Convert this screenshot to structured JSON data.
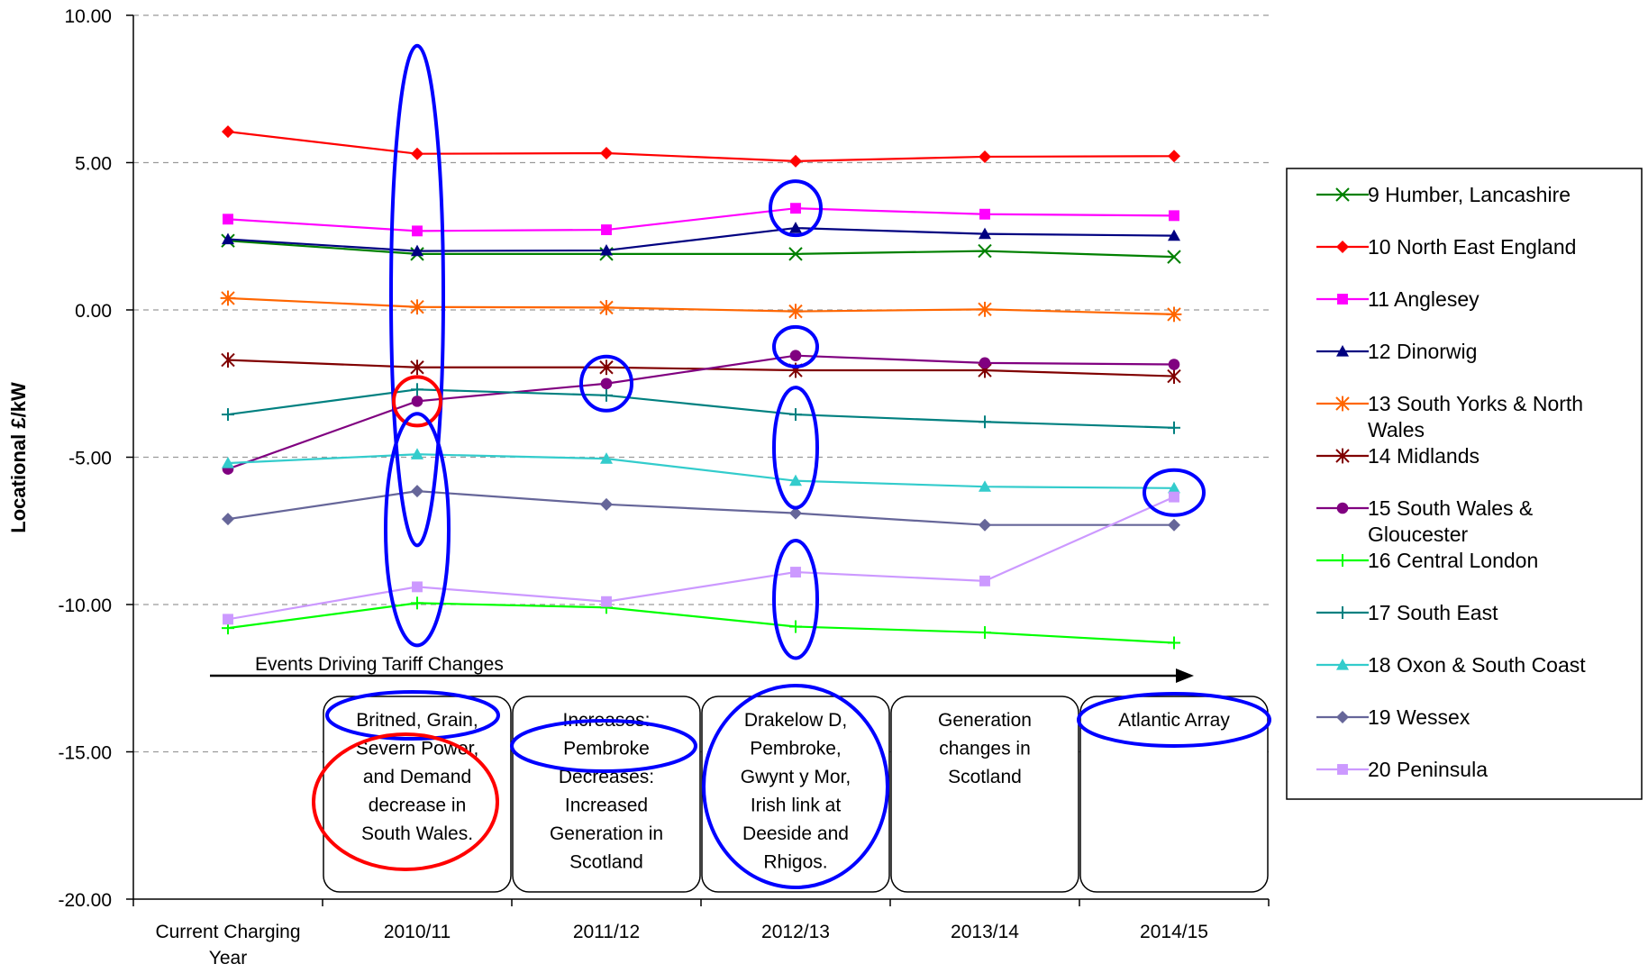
{
  "chart_data": {
    "type": "line",
    "title": "",
    "xlabel": "",
    "ylabel": "Locational £/kW",
    "ylim": [
      -20,
      10
    ],
    "y_ticks": [
      "10.00",
      "5.00",
      "0.00",
      "-5.00",
      "-10.00",
      "-15.00",
      "-20.00"
    ],
    "categories": [
      "Current Charging Year",
      "2010/11",
      "2011/12",
      "2012/13",
      "2013/14",
      "2014/15"
    ],
    "grid": "horizontal dashed",
    "legend_position": "right",
    "series": [
      {
        "name": "9  Humber, Lancashire",
        "color": "#008000",
        "marker": "x",
        "values": [
          2.35,
          1.9,
          1.9,
          1.9,
          2.0,
          1.8
        ]
      },
      {
        "name": "10  North East England",
        "color": "#ff0000",
        "marker": "diamond",
        "values": [
          6.05,
          5.3,
          5.32,
          5.05,
          5.2,
          5.22
        ]
      },
      {
        "name": "11  Anglesey",
        "color": "#ff00ff",
        "marker": "square",
        "values": [
          3.08,
          2.68,
          2.72,
          3.45,
          3.25,
          3.2
        ]
      },
      {
        "name": "12  Dinorwig",
        "color": "#000080",
        "marker": "triangle",
        "values": [
          2.4,
          2.0,
          2.02,
          2.78,
          2.58,
          2.52
        ]
      },
      {
        "name": "13  South Yorks & North Wales",
        "color": "#ff6600",
        "marker": "asterisk",
        "values": [
          0.4,
          0.1,
          0.08,
          -0.05,
          0.02,
          -0.15
        ]
      },
      {
        "name": "14  Midlands",
        "color": "#800000",
        "marker": "star",
        "values": [
          -1.7,
          -1.95,
          -1.95,
          -2.05,
          -2.05,
          -2.25
        ]
      },
      {
        "name": "15  South Wales & Gloucester",
        "color": "#800080",
        "marker": "circle",
        "values": [
          -5.4,
          -3.1,
          -2.5,
          -1.55,
          -1.8,
          -1.85
        ]
      },
      {
        "name": "16  Central London",
        "color": "#00ff00",
        "marker": "plus",
        "values": [
          -10.8,
          -9.95,
          -10.1,
          -10.75,
          -10.95,
          -11.3
        ]
      },
      {
        "name": "17  South East",
        "color": "#008080",
        "marker": "plus",
        "values": [
          -3.55,
          -2.7,
          -2.9,
          -3.55,
          -3.8,
          -4.0
        ]
      },
      {
        "name": "18  Oxon & South Coast",
        "color": "#33cccc",
        "marker": "triangle",
        "values": [
          -5.2,
          -4.9,
          -5.05,
          -5.8,
          -6.0,
          -6.05
        ]
      },
      {
        "name": "19  Wessex",
        "color": "#666699",
        "marker": "diamond",
        "values": [
          -7.1,
          -6.15,
          -6.6,
          -6.9,
          -7.3,
          -7.3
        ]
      },
      {
        "name": "20  Peninsula",
        "color": "#cc99ff",
        "marker": "square",
        "values": [
          -10.5,
          -9.4,
          -9.9,
          -8.9,
          -9.2,
          -6.35
        ]
      }
    ],
    "annotations": {
      "arrow_label": "Events Driving Tariff Changes",
      "events": [
        {
          "category": "2010/11",
          "lines": [
            "Britned, Grain,",
            "Severn Power,",
            "and Demand",
            "decrease  in",
            "South Wales."
          ]
        },
        {
          "category": "2011/12",
          "lines": [
            "Increases:",
            "Pembroke",
            "Decreases:",
            "Increased",
            "Generation in",
            "Scotland"
          ]
        },
        {
          "category": "2012/13",
          "lines": [
            "Drakelow D,",
            "Pembroke,",
            "Gwynt y Mor,",
            "Irish link at",
            "Deeside and",
            "Rhigos."
          ]
        },
        {
          "category": "2013/14",
          "lines": [
            "Generation",
            "changes in",
            "Scotland"
          ]
        },
        {
          "category": "2014/15",
          "lines": [
            "Atlantic Array"
          ]
        }
      ],
      "highlight_colors": {
        "blue": "#0000ff",
        "red": "#ff0000"
      }
    }
  }
}
